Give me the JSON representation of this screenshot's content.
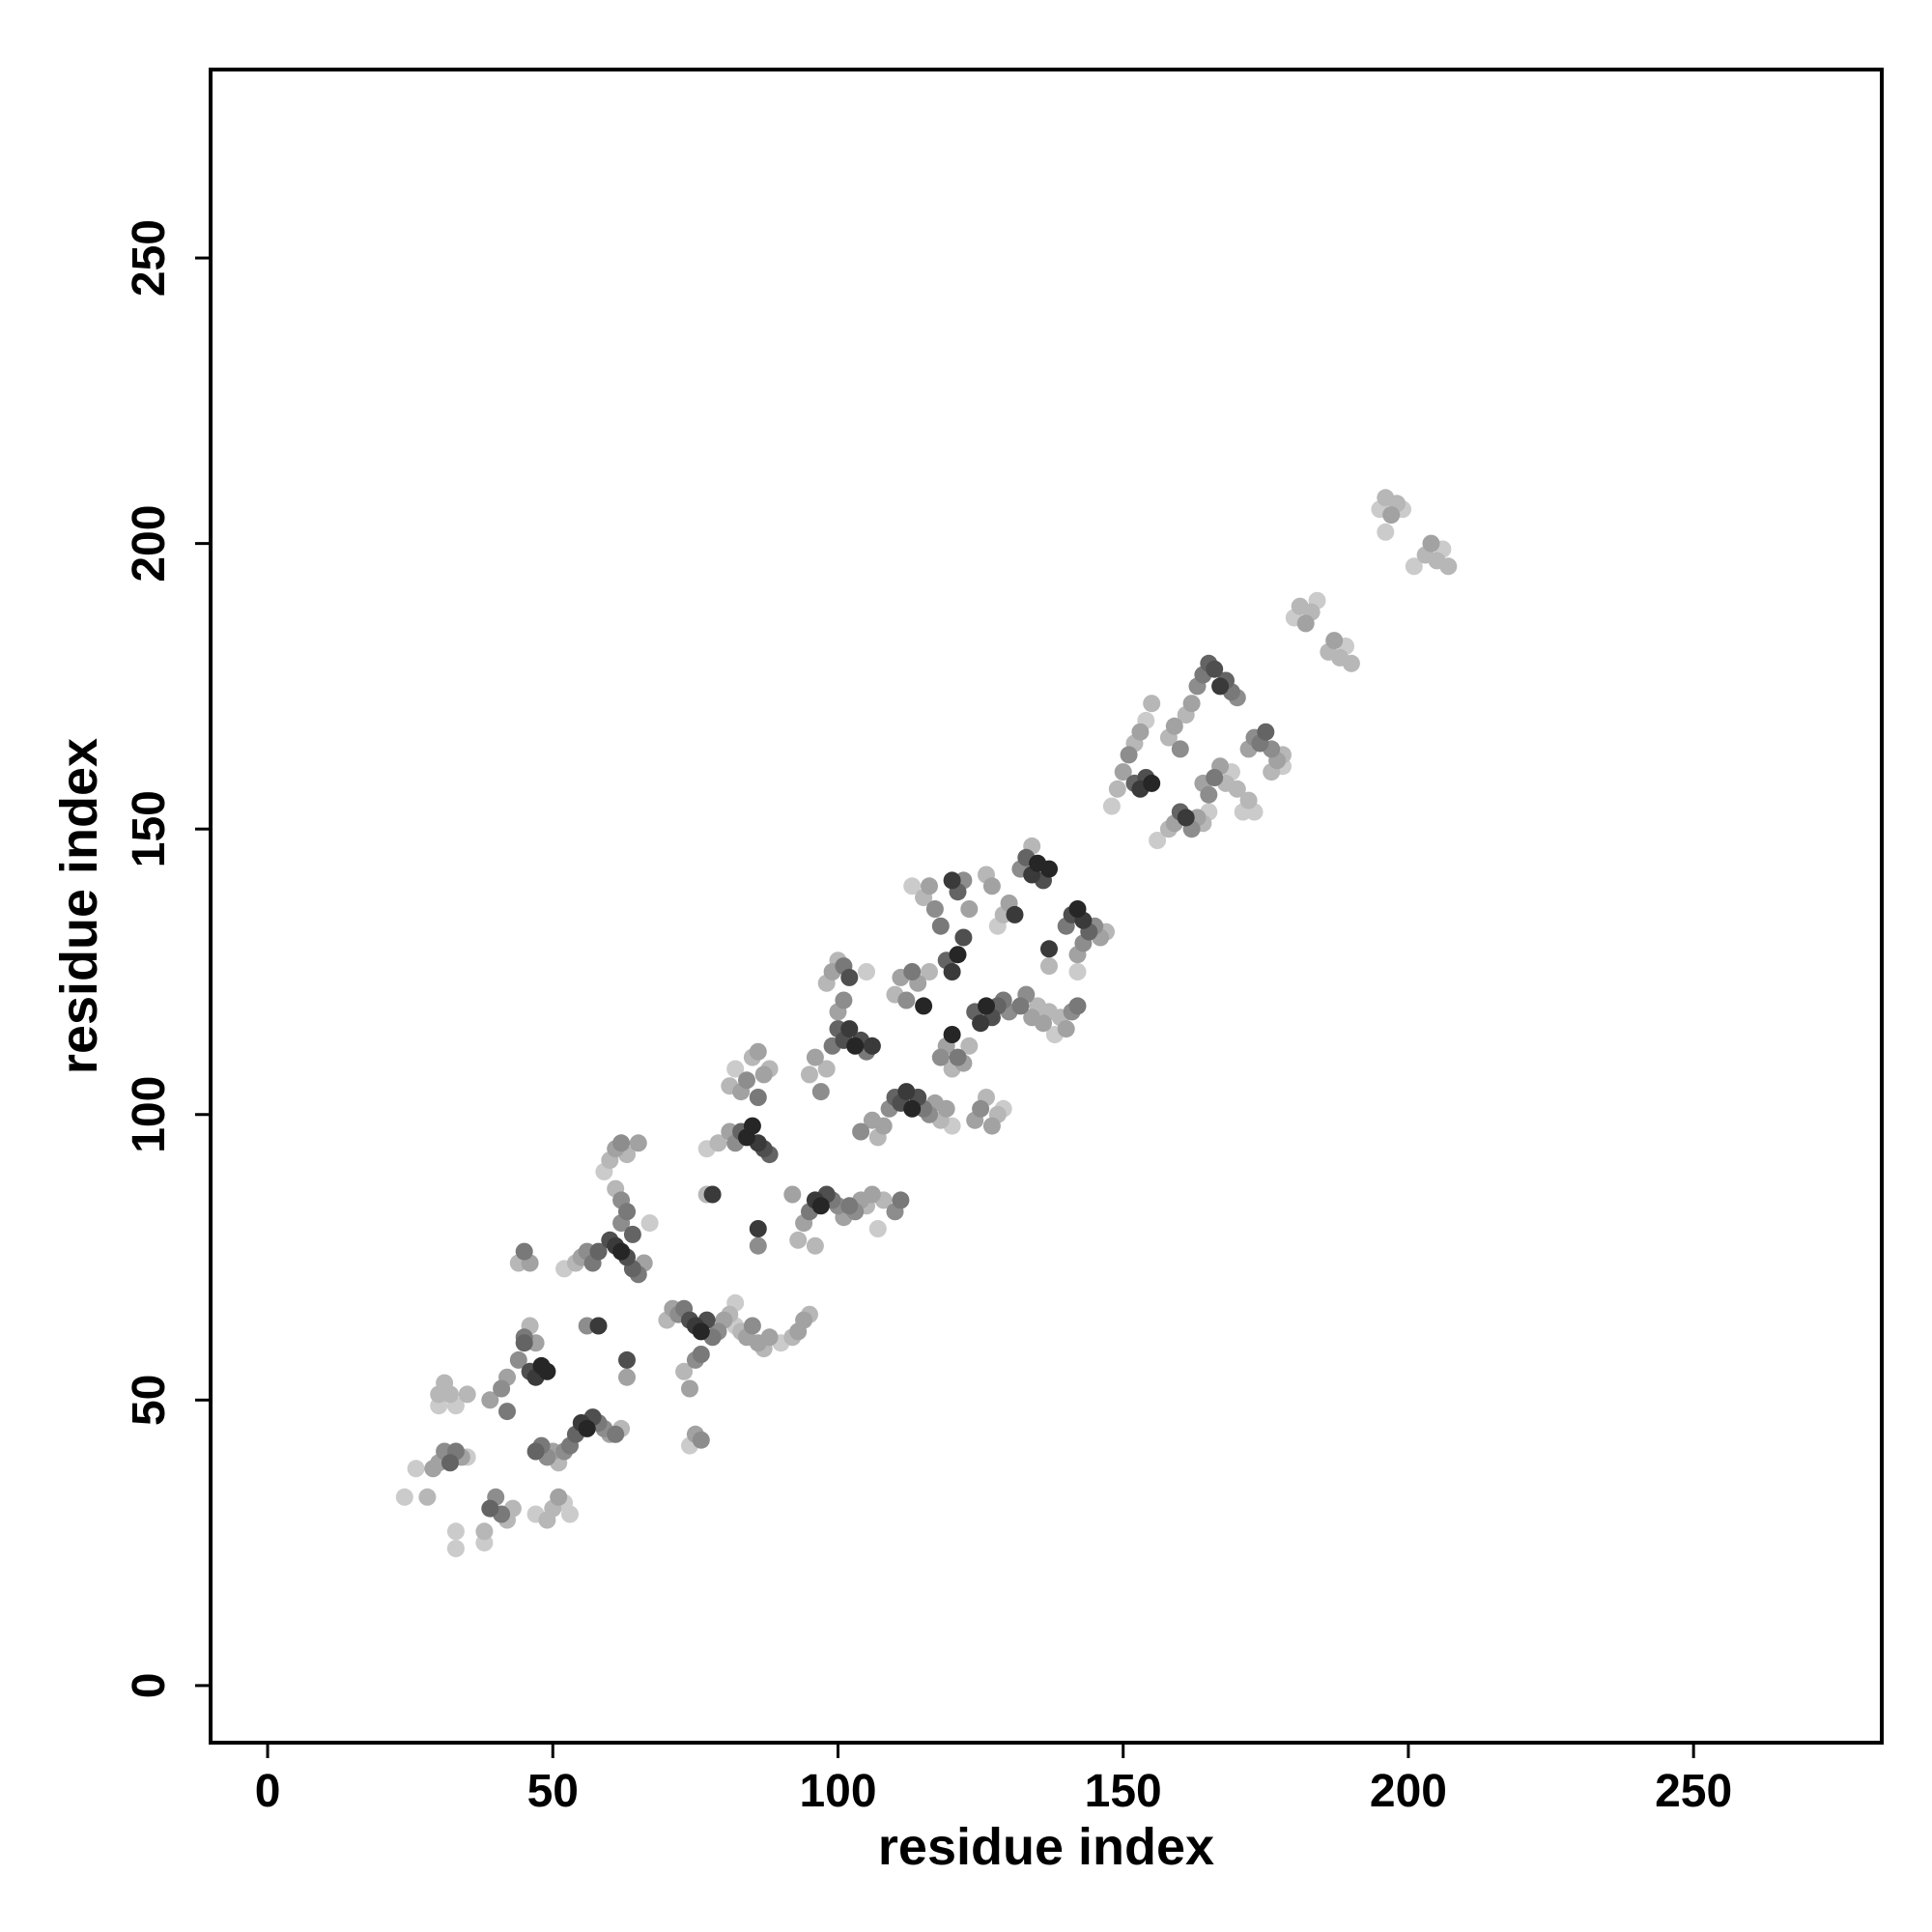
{
  "chart_data": {
    "type": "scatter",
    "title": "",
    "xlabel": "residue index",
    "ylabel": "residue index",
    "xlim": [
      -10,
      283
    ],
    "ylim": [
      -10,
      283
    ],
    "xticks": [
      0,
      50,
      100,
      150,
      200,
      250
    ],
    "yticks": [
      0,
      50,
      100,
      150,
      200,
      250
    ],
    "grid": false,
    "marker_color_scale": [
      "#e0e0e0",
      "#111111"
    ],
    "points": [
      [
        24,
        33,
        0.1
      ],
      [
        26,
        38,
        0.1
      ],
      [
        28,
        33,
        0.2
      ],
      [
        29,
        38,
        0.3
      ],
      [
        30,
        49,
        0.1
      ],
      [
        30,
        51,
        0.2
      ],
      [
        31,
        53,
        0.2
      ],
      [
        30,
        39,
        0.3
      ],
      [
        31,
        41,
        0.4
      ],
      [
        32,
        39,
        0.6
      ],
      [
        33,
        41,
        0.5
      ],
      [
        34,
        40,
        0.3
      ],
      [
        35,
        40,
        0.1
      ],
      [
        32,
        51,
        0.2
      ],
      [
        33,
        49,
        0.1
      ],
      [
        35,
        51,
        0.2
      ],
      [
        33,
        24,
        0.1
      ],
      [
        33,
        27,
        0.1
      ],
      [
        38,
        25,
        0.1
      ],
      [
        38,
        27,
        0.2
      ],
      [
        39,
        31,
        0.6
      ],
      [
        40,
        33,
        0.4
      ],
      [
        41,
        30,
        0.5
      ],
      [
        42,
        29,
        0.2
      ],
      [
        43,
        31,
        0.2
      ],
      [
        39,
        50,
        0.3
      ],
      [
        41,
        52,
        0.4
      ],
      [
        42,
        48,
        0.5
      ],
      [
        42,
        54,
        0.3
      ],
      [
        44,
        57,
        0.4
      ],
      [
        45,
        60,
        0.6
      ],
      [
        45,
        61,
        0.5
      ],
      [
        46,
        55,
        0.7
      ],
      [
        47,
        54,
        0.8
      ],
      [
        48,
        56,
        0.9
      ],
      [
        49,
        55,
        0.9
      ],
      [
        46,
        63,
        0.2
      ],
      [
        47,
        60,
        0.3
      ],
      [
        44,
        74,
        0.2
      ],
      [
        45,
        76,
        0.5
      ],
      [
        46,
        74,
        0.3
      ],
      [
        47,
        41,
        0.6
      ],
      [
        48,
        42,
        0.5
      ],
      [
        49,
        40,
        0.4
      ],
      [
        50,
        41,
        0.3
      ],
      [
        51,
        39,
        0.2
      ],
      [
        52,
        41,
        0.4
      ],
      [
        53,
        42,
        0.5
      ],
      [
        54,
        44,
        0.6
      ],
      [
        55,
        46,
        0.8
      ],
      [
        56,
        45,
        0.9
      ],
      [
        57,
        47,
        0.7
      ],
      [
        58,
        46,
        0.5
      ],
      [
        59,
        45,
        0.4
      ],
      [
        60,
        44,
        0.3
      ],
      [
        61,
        44,
        0.5
      ],
      [
        62,
        45,
        0.2
      ],
      [
        47,
        30,
        0.1
      ],
      [
        49,
        29,
        0.2
      ],
      [
        50,
        31,
        0.2
      ],
      [
        51,
        33,
        0.3
      ],
      [
        52,
        32,
        0.1
      ],
      [
        53,
        30,
        0.1
      ],
      [
        52,
        73,
        0.1
      ],
      [
        54,
        74,
        0.2
      ],
      [
        55,
        75,
        0.3
      ],
      [
        56,
        76,
        0.4
      ],
      [
        57,
        74,
        0.5
      ],
      [
        58,
        76,
        0.6
      ],
      [
        60,
        78,
        0.7
      ],
      [
        61,
        77,
        0.8
      ],
      [
        62,
        76,
        0.9
      ],
      [
        63,
        75,
        0.7
      ],
      [
        64,
        73,
        0.6
      ],
      [
        65,
        72,
        0.5
      ],
      [
        66,
        74,
        0.3
      ],
      [
        62,
        81,
        0.4
      ],
      [
        63,
        83,
        0.5
      ],
      [
        64,
        79,
        0.6
      ],
      [
        59,
        90,
        0.1
      ],
      [
        60,
        92,
        0.2
      ],
      [
        61,
        94,
        0.3
      ],
      [
        62,
        95,
        0.4
      ],
      [
        63,
        93,
        0.2
      ],
      [
        65,
        95,
        0.3
      ],
      [
        61,
        87,
        0.2
      ],
      [
        62,
        85,
        0.4
      ],
      [
        63,
        83,
        0.3
      ],
      [
        67,
        81,
        0.1
      ],
      [
        56,
        63,
        0.4
      ],
      [
        58,
        63,
        0.8
      ],
      [
        63,
        57,
        0.7
      ],
      [
        63,
        54,
        0.3
      ],
      [
        70,
        64,
        0.2
      ],
      [
        71,
        66,
        0.3
      ],
      [
        72,
        65,
        0.4
      ],
      [
        73,
        66,
        0.5
      ],
      [
        74,
        64,
        0.7
      ],
      [
        75,
        63,
        0.8
      ],
      [
        76,
        62,
        0.9
      ],
      [
        77,
        64,
        0.7
      ],
      [
        78,
        61,
        0.5
      ],
      [
        79,
        62,
        0.4
      ],
      [
        80,
        64,
        0.3
      ],
      [
        81,
        65,
        0.2
      ],
      [
        82,
        63,
        0.1
      ],
      [
        73,
        55,
        0.2
      ],
      [
        74,
        52,
        0.3
      ],
      [
        75,
        57,
        0.4
      ],
      [
        76,
        58,
        0.5
      ],
      [
        75,
        44,
        0.3
      ],
      [
        76,
        43,
        0.4
      ],
      [
        74,
        42,
        0.1
      ],
      [
        82,
        67,
        0.1
      ],
      [
        83,
        62,
        0.2
      ],
      [
        84,
        61,
        0.3
      ],
      [
        85,
        63,
        0.4
      ],
      [
        86,
        60,
        0.3
      ],
      [
        87,
        59,
        0.2
      ],
      [
        88,
        61,
        0.3
      ],
      [
        90,
        60,
        0.1
      ],
      [
        92,
        61,
        0.2
      ],
      [
        93,
        62,
        0.3
      ],
      [
        94,
        64,
        0.3
      ],
      [
        95,
        65,
        0.2
      ],
      [
        77,
        86,
        0.2
      ],
      [
        78,
        86,
        0.8
      ],
      [
        77,
        94,
        0.1
      ],
      [
        79,
        95,
        0.2
      ],
      [
        81,
        97,
        0.3
      ],
      [
        82,
        95,
        0.4
      ],
      [
        83,
        97,
        0.6
      ],
      [
        84,
        96,
        0.9
      ],
      [
        85,
        98,
        0.9
      ],
      [
        86,
        95,
        0.8
      ],
      [
        87,
        94,
        0.7
      ],
      [
        88,
        93,
        0.6
      ],
      [
        86,
        80,
        0.8
      ],
      [
        86,
        77,
        0.4
      ],
      [
        81,
        105,
        0.2
      ],
      [
        82,
        108,
        0.1
      ],
      [
        83,
        104,
        0.3
      ],
      [
        84,
        106,
        0.4
      ],
      [
        85,
        110,
        0.2
      ],
      [
        86,
        103,
        0.5
      ],
      [
        87,
        107,
        0.3
      ],
      [
        88,
        108,
        0.2
      ],
      [
        86,
        111,
        0.3
      ],
      [
        93,
        78,
        0.2
      ],
      [
        94,
        81,
        0.3
      ],
      [
        95,
        83,
        0.5
      ],
      [
        96,
        85,
        0.8
      ],
      [
        97,
        84,
        0.9
      ],
      [
        98,
        86,
        0.7
      ],
      [
        99,
        85,
        0.5
      ],
      [
        100,
        84,
        0.4
      ],
      [
        92,
        86,
        0.3
      ],
      [
        96,
        77,
        0.2
      ],
      [
        95,
        107,
        0.2
      ],
      [
        96,
        110,
        0.3
      ],
      [
        97,
        104,
        0.4
      ],
      [
        98,
        108,
        0.2
      ],
      [
        99,
        112,
        0.5
      ],
      [
        100,
        115,
        0.6
      ],
      [
        101,
        113,
        0.7
      ],
      [
        102,
        115,
        0.8
      ],
      [
        103,
        112,
        0.9
      ],
      [
        104,
        113,
        0.7
      ],
      [
        105,
        111,
        0.5
      ],
      [
        106,
        112,
        0.8
      ],
      [
        98,
        123,
        0.2
      ],
      [
        99,
        125,
        0.3
      ],
      [
        100,
        127,
        0.2
      ],
      [
        101,
        126,
        0.5
      ],
      [
        102,
        124,
        0.7
      ],
      [
        100,
        118,
        0.3
      ],
      [
        101,
        120,
        0.4
      ],
      [
        105,
        125,
        0.1
      ],
      [
        101,
        82,
        0.3
      ],
      [
        102,
        84,
        0.5
      ],
      [
        103,
        83,
        0.4
      ],
      [
        104,
        85,
        0.3
      ],
      [
        105,
        84,
        0.2
      ],
      [
        107,
        80,
        0.1
      ],
      [
        106,
        86,
        0.3
      ],
      [
        108,
        85,
        0.2
      ],
      [
        110,
        83,
        0.4
      ],
      [
        111,
        85,
        0.5
      ],
      [
        104,
        97,
        0.4
      ],
      [
        106,
        99,
        0.3
      ],
      [
        107,
        96,
        0.2
      ],
      [
        108,
        98,
        0.3
      ],
      [
        109,
        101,
        0.4
      ],
      [
        110,
        103,
        0.6
      ],
      [
        111,
        102,
        0.7
      ],
      [
        112,
        104,
        0.8
      ],
      [
        113,
        101,
        0.9
      ],
      [
        114,
        103,
        0.7
      ],
      [
        115,
        101,
        0.5
      ],
      [
        116,
        100,
        0.4
      ],
      [
        117,
        102,
        0.3
      ],
      [
        118,
        99,
        0.2
      ],
      [
        119,
        101,
        0.3
      ],
      [
        120,
        98,
        0.1
      ],
      [
        110,
        121,
        0.2
      ],
      [
        111,
        124,
        0.3
      ],
      [
        112,
        120,
        0.4
      ],
      [
        113,
        125,
        0.5
      ],
      [
        114,
        123,
        0.3
      ],
      [
        115,
        119,
        0.9
      ],
      [
        116,
        125,
        0.2
      ],
      [
        113,
        140,
        0.1
      ],
      [
        115,
        138,
        0.2
      ],
      [
        116,
        140,
        0.3
      ],
      [
        117,
        136,
        0.4
      ],
      [
        118,
        133,
        0.5
      ],
      [
        119,
        127,
        0.6
      ],
      [
        120,
        125,
        0.8
      ],
      [
        121,
        128,
        0.9
      ],
      [
        122,
        131,
        0.7
      ],
      [
        120,
        141,
        0.8
      ],
      [
        121,
        139,
        0.6
      ],
      [
        122,
        141,
        0.4
      ],
      [
        123,
        136,
        0.3
      ],
      [
        118,
        110,
        0.4
      ],
      [
        119,
        112,
        0.3
      ],
      [
        120,
        108,
        0.2
      ],
      [
        121,
        110,
        0.5
      ],
      [
        120,
        114,
        0.9
      ],
      [
        122,
        109,
        0.3
      ],
      [
        123,
        112,
        0.2
      ],
      [
        124,
        118,
        0.6
      ],
      [
        125,
        116,
        0.8
      ],
      [
        126,
        119,
        0.9
      ],
      [
        127,
        117,
        0.7
      ],
      [
        128,
        119,
        0.6
      ],
      [
        129,
        120,
        0.5
      ],
      [
        130,
        118,
        0.4
      ],
      [
        124,
        99,
        0.3
      ],
      [
        125,
        101,
        0.4
      ],
      [
        126,
        103,
        0.2
      ],
      [
        127,
        98,
        0.3
      ],
      [
        128,
        100,
        0.2
      ],
      [
        129,
        101,
        0.1
      ],
      [
        126,
        142,
        0.2
      ],
      [
        127,
        140,
        0.3
      ],
      [
        128,
        133,
        0.1
      ],
      [
        129,
        135,
        0.2
      ],
      [
        130,
        137,
        0.3
      ],
      [
        131,
        135,
        0.8
      ],
      [
        132,
        143,
        0.4
      ],
      [
        133,
        145,
        0.6
      ],
      [
        134,
        142,
        0.8
      ],
      [
        135,
        144,
        0.9
      ],
      [
        136,
        141,
        0.7
      ],
      [
        137,
        143,
        0.9
      ],
      [
        134,
        147,
        0.2
      ],
      [
        132,
        119,
        0.5
      ],
      [
        133,
        121,
        0.4
      ],
      [
        134,
        117,
        0.3
      ],
      [
        135,
        119,
        0.2
      ],
      [
        136,
        116,
        0.3
      ],
      [
        137,
        118,
        0.2
      ],
      [
        138,
        114,
        0.1
      ],
      [
        139,
        117,
        0.2
      ],
      [
        140,
        115,
        0.3
      ],
      [
        141,
        118,
        0.4
      ],
      [
        142,
        119,
        0.5
      ],
      [
        137,
        126,
        0.2
      ],
      [
        137,
        129,
        0.8
      ],
      [
        140,
        133,
        0.5
      ],
      [
        141,
        135,
        0.7
      ],
      [
        142,
        136,
        0.9
      ],
      [
        143,
        134,
        0.8
      ],
      [
        144,
        132,
        0.6
      ],
      [
        145,
        133,
        0.4
      ],
      [
        146,
        131,
        0.3
      ],
      [
        147,
        132,
        0.2
      ],
      [
        142,
        128,
        0.3
      ],
      [
        143,
        130,
        0.4
      ],
      [
        142,
        125,
        0.1
      ],
      [
        148,
        154,
        0.1
      ],
      [
        149,
        157,
        0.2
      ],
      [
        150,
        160,
        0.3
      ],
      [
        151,
        163,
        0.4
      ],
      [
        152,
        165,
        0.2
      ],
      [
        153,
        167,
        0.3
      ],
      [
        154,
        169,
        0.1
      ],
      [
        155,
        172,
        0.2
      ],
      [
        152,
        158,
        0.6
      ],
      [
        153,
        157,
        0.8
      ],
      [
        154,
        159,
        0.7
      ],
      [
        155,
        158,
        0.9
      ],
      [
        156,
        148,
        0.1
      ],
      [
        158,
        150,
        0.2
      ],
      [
        159,
        151,
        0.3
      ],
      [
        160,
        153,
        0.6
      ],
      [
        161,
        152,
        0.8
      ],
      [
        162,
        150,
        0.4
      ],
      [
        163,
        152,
        0.3
      ],
      [
        164,
        151,
        0.2
      ],
      [
        165,
        153,
        0.1
      ],
      [
        158,
        166,
        0.2
      ],
      [
        159,
        168,
        0.3
      ],
      [
        160,
        164,
        0.4
      ],
      [
        161,
        170,
        0.2
      ],
      [
        162,
        172,
        0.3
      ],
      [
        163,
        175,
        0.4
      ],
      [
        164,
        177,
        0.5
      ],
      [
        165,
        179,
        0.6
      ],
      [
        166,
        178,
        0.7
      ],
      [
        167,
        175,
        0.8
      ],
      [
        168,
        176,
        0.6
      ],
      [
        169,
        174,
        0.5
      ],
      [
        170,
        173,
        0.4
      ],
      [
        164,
        158,
        0.3
      ],
      [
        165,
        156,
        0.4
      ],
      [
        166,
        159,
        0.5
      ],
      [
        167,
        161,
        0.3
      ],
      [
        168,
        158,
        0.2
      ],
      [
        169,
        160,
        0.1
      ],
      [
        170,
        157,
        0.2
      ],
      [
        171,
        153,
        0.1
      ],
      [
        172,
        155,
        0.2
      ],
      [
        173,
        153,
        0.1
      ],
      [
        172,
        164,
        0.3
      ],
      [
        173,
        166,
        0.4
      ],
      [
        174,
        165,
        0.5
      ],
      [
        175,
        167,
        0.6
      ],
      [
        176,
        164,
        0.4
      ],
      [
        177,
        162,
        0.3
      ],
      [
        178,
        163,
        0.2
      ],
      [
        176,
        160,
        0.2
      ],
      [
        178,
        161,
        0.1
      ],
      [
        180,
        187,
        0.1
      ],
      [
        181,
        189,
        0.2
      ],
      [
        182,
        186,
        0.3
      ],
      [
        183,
        188,
        0.2
      ],
      [
        184,
        190,
        0.1
      ],
      [
        186,
        181,
        0.2
      ],
      [
        187,
        183,
        0.3
      ],
      [
        188,
        180,
        0.2
      ],
      [
        189,
        182,
        0.1
      ],
      [
        190,
        179,
        0.2
      ],
      [
        195,
        206,
        0.1
      ],
      [
        196,
        208,
        0.2
      ],
      [
        197,
        205,
        0.3
      ],
      [
        198,
        207,
        0.2
      ],
      [
        199,
        206,
        0.1
      ],
      [
        196,
        202,
        0.1
      ],
      [
        201,
        196,
        0.1
      ],
      [
        203,
        198,
        0.2
      ],
      [
        204,
        200,
        0.3
      ],
      [
        205,
        197,
        0.2
      ],
      [
        206,
        199,
        0.1
      ],
      [
        207,
        196,
        0.2
      ]
    ]
  }
}
